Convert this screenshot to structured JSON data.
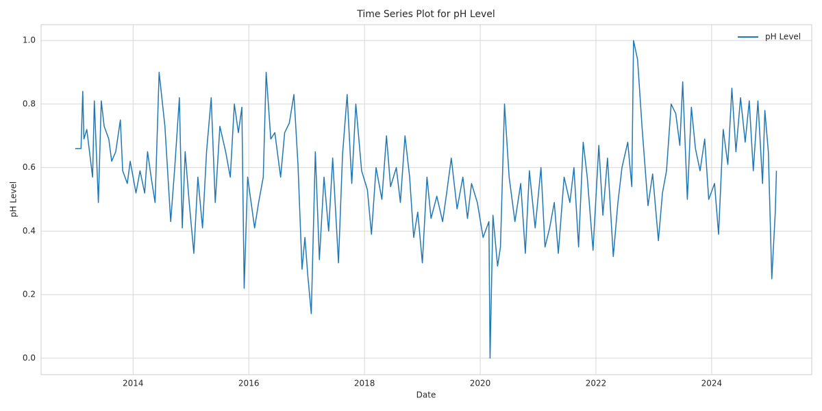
{
  "chart_data": {
    "type": "line",
    "title": "Time Series Plot for pH Level",
    "xlabel": "Date",
    "ylabel": "pH Level",
    "x": [
      2013.0,
      2013.1,
      2013.13,
      2013.15,
      2013.2,
      2013.3,
      2013.33,
      2013.4,
      2013.45,
      2013.5,
      2013.58,
      2013.63,
      2013.7,
      2013.78,
      2013.82,
      2013.9,
      2013.95,
      2014.05,
      2014.12,
      2014.2,
      2014.25,
      2014.32,
      2014.38,
      2014.45,
      2014.55,
      2014.65,
      2014.72,
      2014.8,
      2014.85,
      2014.9,
      2014.97,
      2015.05,
      2015.12,
      2015.2,
      2015.27,
      2015.35,
      2015.42,
      2015.5,
      2015.6,
      2015.68,
      2015.75,
      2015.82,
      2015.88,
      2015.92,
      2015.98,
      2016.1,
      2016.17,
      2016.25,
      2016.3,
      2016.38,
      2016.45,
      2016.55,
      2016.62,
      2016.7,
      2016.78,
      2016.85,
      2016.92,
      2016.97,
      2017.02,
      2017.08,
      2017.15,
      2017.22,
      2017.3,
      2017.38,
      2017.45,
      2017.55,
      2017.62,
      2017.7,
      2017.78,
      2017.85,
      2017.95,
      2018.05,
      2018.12,
      2018.2,
      2018.3,
      2018.38,
      2018.45,
      2018.55,
      2018.62,
      2018.7,
      2018.78,
      2018.85,
      2018.92,
      2019.0,
      2019.08,
      2019.15,
      2019.25,
      2019.35,
      2019.42,
      2019.5,
      2019.6,
      2019.7,
      2019.78,
      2019.85,
      2019.95,
      2020.05,
      2020.15,
      2020.17,
      2020.22,
      2020.3,
      2020.35,
      2020.42,
      2020.5,
      2020.6,
      2020.7,
      2020.78,
      2020.85,
      2020.95,
      2021.05,
      2021.12,
      2021.2,
      2021.28,
      2021.35,
      2021.45,
      2021.55,
      2021.62,
      2021.7,
      2021.78,
      2021.85,
      2021.95,
      2022.05,
      2022.12,
      2022.2,
      2022.3,
      2022.38,
      2022.45,
      2022.55,
      2022.62,
      2022.65,
      2022.72,
      2022.8,
      2022.9,
      2022.98,
      2023.08,
      2023.15,
      2023.22,
      2023.3,
      2023.38,
      2023.45,
      2023.5,
      2023.58,
      2023.65,
      2023.72,
      2023.8,
      2023.88,
      2023.95,
      2024.05,
      2024.12,
      2024.2,
      2024.28,
      2024.35,
      2024.42,
      2024.5,
      2024.58,
      2024.65,
      2024.72,
      2024.8,
      2024.88,
      2024.92,
      2024.98,
      2025.04,
      2025.1,
      2025.12
    ],
    "series": [
      {
        "name": "pH Level",
        "color": "#1f77b4",
        "values": [
          0.66,
          0.66,
          0.84,
          0.69,
          0.72,
          0.57,
          0.81,
          0.49,
          0.81,
          0.73,
          0.69,
          0.62,
          0.65,
          0.75,
          0.59,
          0.55,
          0.62,
          0.52,
          0.59,
          0.52,
          0.65,
          0.56,
          0.49,
          0.9,
          0.73,
          0.43,
          0.6,
          0.82,
          0.41,
          0.65,
          0.49,
          0.33,
          0.57,
          0.41,
          0.65,
          0.82,
          0.49,
          0.73,
          0.65,
          0.57,
          0.8,
          0.71,
          0.79,
          0.22,
          0.57,
          0.41,
          0.49,
          0.57,
          0.9,
          0.69,
          0.71,
          0.57,
          0.71,
          0.74,
          0.83,
          0.61,
          0.28,
          0.38,
          0.26,
          0.14,
          0.65,
          0.31,
          0.57,
          0.4,
          0.63,
          0.3,
          0.64,
          0.83,
          0.55,
          0.8,
          0.59,
          0.53,
          0.39,
          0.6,
          0.5,
          0.7,
          0.54,
          0.6,
          0.49,
          0.7,
          0.57,
          0.38,
          0.46,
          0.3,
          0.57,
          0.44,
          0.51,
          0.43,
          0.52,
          0.63,
          0.47,
          0.57,
          0.44,
          0.55,
          0.49,
          0.38,
          0.43,
          0.0,
          0.45,
          0.29,
          0.35,
          0.8,
          0.57,
          0.43,
          0.55,
          0.33,
          0.59,
          0.41,
          0.6,
          0.35,
          0.41,
          0.49,
          0.33,
          0.57,
          0.49,
          0.6,
          0.35,
          0.68,
          0.57,
          0.34,
          0.67,
          0.45,
          0.63,
          0.32,
          0.49,
          0.6,
          0.68,
          0.54,
          1.0,
          0.94,
          0.72,
          0.48,
          0.58,
          0.37,
          0.52,
          0.59,
          0.8,
          0.77,
          0.67,
          0.87,
          0.5,
          0.79,
          0.66,
          0.59,
          0.69,
          0.5,
          0.55,
          0.39,
          0.72,
          0.61,
          0.85,
          0.65,
          0.82,
          0.68,
          0.81,
          0.59,
          0.81,
          0.55,
          0.78,
          0.65,
          0.25,
          0.46,
          0.59
        ]
      }
    ],
    "xlim": [
      2012.41,
      2025.73
    ],
    "xticks": [
      2014,
      2016,
      2018,
      2020,
      2022,
      2024
    ],
    "ylim": [
      -0.052,
      1.05
    ],
    "yticks": [
      {
        "value": 0,
        "label": "0.0"
      },
      0.2,
      0.4,
      0.6,
      0.8,
      {
        "value": 1,
        "label": "1.0"
      }
    ],
    "grid": true,
    "legend": "upper right"
  }
}
